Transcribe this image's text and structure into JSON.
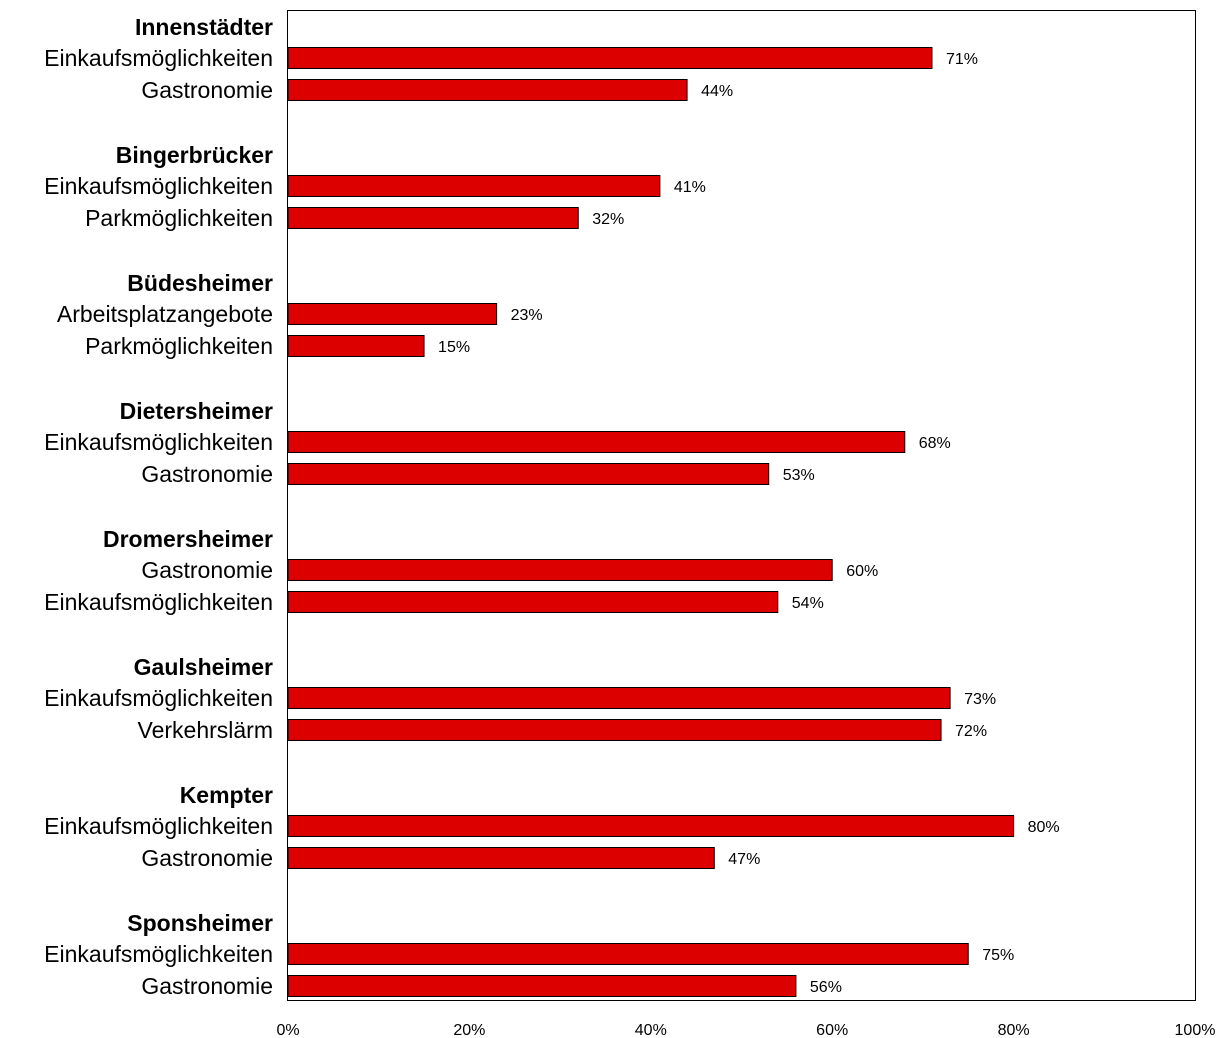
{
  "chart_data": {
    "type": "bar",
    "orientation": "horizontal",
    "xlim": [
      0,
      100
    ],
    "x_ticks": [
      "0%",
      "20%",
      "40%",
      "60%",
      "80%",
      "100%"
    ],
    "value_suffix": "%",
    "bar_color": "#dd0000",
    "groups": [
      {
        "name": "Innenstädter",
        "items": [
          {
            "label": "Einkaufsmöglichkeiten",
            "value": 71
          },
          {
            "label": "Gastronomie",
            "value": 44
          }
        ]
      },
      {
        "name": "Bingerbrücker",
        "items": [
          {
            "label": "Einkaufsmöglichkeiten",
            "value": 41
          },
          {
            "label": "Parkmöglichkeiten",
            "value": 32
          }
        ]
      },
      {
        "name": "Büdesheimer",
        "items": [
          {
            "label": "Arbeitsplatzangebote",
            "value": 23
          },
          {
            "label": "Parkmöglichkeiten",
            "value": 15
          }
        ]
      },
      {
        "name": "Dietersheimer",
        "items": [
          {
            "label": "Einkaufsmöglichkeiten",
            "value": 68
          },
          {
            "label": "Gastronomie",
            "value": 53
          }
        ]
      },
      {
        "name": "Dromersheimer",
        "items": [
          {
            "label": "Gastronomie",
            "value": 60
          },
          {
            "label": "Einkaufsmöglichkeiten",
            "value": 54
          }
        ]
      },
      {
        "name": "Gaulsheimer",
        "items": [
          {
            "label": "Einkaufsmöglichkeiten",
            "value": 73
          },
          {
            "label": "Verkehrslärm",
            "value": 72
          }
        ]
      },
      {
        "name": "Kempter",
        "items": [
          {
            "label": "Einkaufsmöglichkeiten",
            "value": 80
          },
          {
            "label": "Gastronomie",
            "value": 47
          }
        ]
      },
      {
        "name": "Sponsheimer",
        "items": [
          {
            "label": "Einkaufsmöglichkeiten",
            "value": 75
          },
          {
            "label": "Gastronomie",
            "value": 56
          }
        ]
      }
    ]
  }
}
